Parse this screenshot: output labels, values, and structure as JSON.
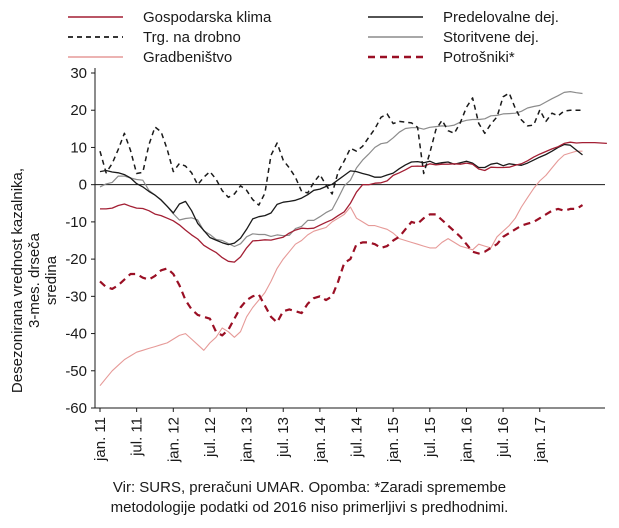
{
  "chart_data": {
    "type": "line",
    "title": "",
    "ylabel": "Desezonirana vrednost kazalnika, 3-mes. drseča sredina",
    "xlabel": "",
    "ylim": [
      -60,
      30
    ],
    "yticks": [
      -60,
      -50,
      -40,
      -30,
      -20,
      -10,
      0,
      10,
      20,
      30
    ],
    "x_tick_labels": [
      "jan. 11",
      "jul. 11",
      "jan. 12",
      "jul. 12",
      "jan. 13",
      "jul. 13",
      "jan. 14",
      "jul. 14",
      "jan. 15",
      "jul. 15",
      "jan. 16",
      "jul. 16",
      "jan. 17"
    ],
    "x_start": "2011-01",
    "x_end": "2017-12",
    "legend_position": "top",
    "grid": false,
    "series": [
      {
        "name": "Gospodarska klima",
        "color": "#a31f34",
        "dash": "solid",
        "width": 1.3,
        "values": [
          -6.5,
          -6.5,
          -6.3,
          -5.6,
          -5.2,
          -5.8,
          -6.3,
          -6.4,
          -7.0,
          -7.9,
          -8.3,
          -9.0,
          -9.7,
          -10.8,
          -12.2,
          -13.5,
          -14.6,
          -16.3,
          -17.3,
          -18.2,
          -19.6,
          -20.6,
          -20.8,
          -19.4,
          -17.0,
          -15.1,
          -15.0,
          -14.8,
          -14.9,
          -14.5,
          -14.1,
          -13.0,
          -12.2,
          -11.7,
          -11.8,
          -11.7,
          -10.9,
          -10.1,
          -9.4,
          -8.3,
          -7.3,
          -5.0,
          -2.0,
          0.0,
          0.0,
          0.4,
          0.5,
          1.0,
          2.5,
          3.2,
          4.0,
          4.9,
          5.0,
          4.9,
          5.6,
          5.3,
          5.5,
          5.5,
          5.6,
          5.5,
          5.8,
          5.5,
          4.2,
          3.8,
          4.7,
          4.6,
          4.6,
          4.7,
          5.2,
          5.6,
          6.4,
          7.4,
          8.2,
          8.9,
          9.6,
          10.2,
          11.1,
          11.4,
          11.2,
          11.3,
          11.3,
          11.3,
          11.2,
          11.1
        ]
      },
      {
        "name": "Predelovalne dej.",
        "color": "#1a1a1a",
        "dash": "solid",
        "width": 1.3,
        "values": [
          3.5,
          3.8,
          3.4,
          3.2,
          2.7,
          1.8,
          0.3,
          -0.6,
          -1.8,
          -2.8,
          -4.1,
          -5.8,
          -7.6,
          -5.2,
          -4.5,
          -7.0,
          -10.4,
          -12.3,
          -14.2,
          -14.9,
          -15.6,
          -16.1,
          -15.7,
          -14.4,
          -12.0,
          -9.2,
          -8.6,
          -8.3,
          -7.6,
          -5.3,
          -4.7,
          -4.5,
          -4.2,
          -3.6,
          -2.7,
          -1.5,
          -1.2,
          -0.5,
          0.1,
          1.3,
          2.5,
          3.7,
          3.5,
          3.0,
          2.6,
          2.0,
          2.0,
          2.6,
          3.1,
          4.3,
          5.3,
          6.1,
          6.2,
          5.9,
          6.3,
          5.6,
          5.9,
          6.1,
          5.5,
          5.9,
          6.3,
          5.8,
          4.6,
          4.6,
          5.5,
          5.8,
          5.1,
          5.6,
          5.4,
          5.2,
          5.8,
          6.6,
          7.4,
          8.1,
          9.0,
          10.0,
          10.8,
          10.6,
          9.3,
          8.0
        ]
      },
      {
        "name": "Trg. na drobno",
        "color": "#1a1a1a",
        "dash": "dashed",
        "width": 1.5,
        "values": [
          9.0,
          3.2,
          5.7,
          9.5,
          13.8,
          9.2,
          3.0,
          3.3,
          10.7,
          15.5,
          14.2,
          9.5,
          3.5,
          5.7,
          5.0,
          3.2,
          0.0,
          2.0,
          3.5,
          1.5,
          -1.6,
          -3.4,
          -2.5,
          -0.3,
          -1.5,
          -4.0,
          -5.5,
          -2.3,
          7.9,
          11.2,
          6.6,
          4.5,
          2.0,
          -1.8,
          -2.2,
          0.6,
          2.7,
          -0.1,
          -2.5,
          3.5,
          6.4,
          9.8,
          9.0,
          10.3,
          12.7,
          15.0,
          18.1,
          19.0,
          16.4,
          17.0,
          16.8,
          16.6,
          15.4,
          3.0,
          8.5,
          14.8,
          17.3,
          14.5,
          13.8,
          16.7,
          20.8,
          23.3,
          16.5,
          13.8,
          16.3,
          18.2,
          23.6,
          24.6,
          20.5,
          17.4,
          15.8,
          16.0,
          20.1,
          17.0,
          19.2,
          18.5,
          19.8,
          20.0,
          20.0,
          20.0
        ]
      },
      {
        "name": "Storitvene dej.",
        "color": "#8c8c8c",
        "dash": "solid",
        "width": 1.2,
        "values": [
          -0.6,
          0.2,
          0.6,
          2.3,
          2.3,
          1.8,
          1.4,
          1.2,
          -1.5,
          -2.8,
          -4.2,
          -5.8,
          -7.8,
          -9.5,
          -9.1,
          -8.9,
          -9.5,
          -12.4,
          -13.4,
          -14.7,
          -15.0,
          -15.8,
          -16.6,
          -15.9,
          -14.0,
          -13.2,
          -13.4,
          -13.4,
          -13.9,
          -13.5,
          -13.7,
          -13.6,
          -11.8,
          -11.2,
          -9.6,
          -9.6,
          -8.6,
          -7.5,
          -6.7,
          -3.6,
          -0.3,
          1.2,
          4.5,
          6.6,
          8.2,
          10.0,
          11.0,
          11.3,
          12.6,
          14.1,
          15.1,
          15.3,
          15.3,
          14.9,
          15.4,
          15.6,
          15.8,
          15.7,
          16.0,
          16.8,
          17.3,
          17.5,
          17.5,
          17.7,
          18.5,
          18.6,
          19.0,
          19.1,
          19.2,
          19.7,
          20.6,
          21.0,
          21.3,
          22.2,
          23.1,
          23.9,
          24.8,
          25.0,
          24.7,
          24.5
        ]
      },
      {
        "name": "Gradbeništvo",
        "color": "#e69a98",
        "dash": "solid",
        "width": 1.1,
        "values": [
          -54.0,
          -52.0,
          -50.0,
          -48.5,
          -47.0,
          -46.0,
          -45.0,
          -44.5,
          -44.0,
          -43.5,
          -43.0,
          -42.5,
          -41.5,
          -40.5,
          -40.0,
          -41.5,
          -43.0,
          -44.5,
          -42.5,
          -41.0,
          -38.5,
          -39.5,
          -41.0,
          -39.5,
          -35.5,
          -33.0,
          -31.0,
          -29.0,
          -26.0,
          -22.5,
          -20.0,
          -18.0,
          -16.0,
          -15.0,
          -13.5,
          -12.5,
          -12.0,
          -11.5,
          -10.0,
          -9.0,
          -8.0,
          -6.0,
          -9.0,
          -10.0,
          -11.0,
          -11.0,
          -11.5,
          -12.0,
          -13.0,
          -14.5,
          -15.0,
          -15.5,
          -16.0,
          -16.5,
          -17.0,
          -17.0,
          -15.5,
          -14.5,
          -15.5,
          -16.5,
          -17.0,
          -17.5,
          -16.0,
          -16.5,
          -17.0,
          -14.0,
          -12.5,
          -11.0,
          -9.0,
          -6.0,
          -3.5,
          -1.0,
          1.0,
          2.5,
          4.5,
          6.5,
          8.0,
          8.5,
          9.0,
          9.0
        ]
      },
      {
        "name": "Potrošniki*",
        "color": "#9a0f24",
        "dash": "dashed",
        "width": 2.2,
        "values": [
          -26.0,
          -27.5,
          -28.0,
          -27.0,
          -25.5,
          -24.0,
          -24.0,
          -25.0,
          -25.5,
          -24.5,
          -23.0,
          -22.5,
          -24.0,
          -27.0,
          -31.0,
          -33.5,
          -35.0,
          -35.5,
          -36.0,
          -39.5,
          -40.5,
          -39.0,
          -36.0,
          -33.0,
          -31.0,
          -30.0,
          -29.5,
          -32.5,
          -35.5,
          -37.0,
          -34.0,
          -33.5,
          -34.0,
          -34.5,
          -32.0,
          -30.5,
          -30.0,
          -31.0,
          -30.0,
          -26.0,
          -21.0,
          -20.0,
          -16.0,
          -15.5,
          -15.5,
          -16.0,
          -17.0,
          -16.5,
          -15.0,
          -14.0,
          -12.0,
          -10.0,
          -10.5,
          -9.0,
          -8.0,
          -8.0,
          -9.5,
          -11.0,
          -12.5,
          -14.0,
          -16.0,
          -18.0,
          -18.5,
          -18.0,
          -17.0,
          -16.0,
          -14.0,
          -13.0,
          -12.0,
          -11.0,
          -10.5,
          -10.0,
          -9.0,
          -8.0,
          -7.0,
          -6.5,
          -7.0,
          -6.5,
          -6.5,
          -5.5
        ]
      }
    ]
  },
  "legend": {
    "items": [
      "Gospodarska klima",
      "Predelovalne dej.",
      "Trg. na drobno",
      "Storitvene dej.",
      "Gradbeništvo",
      "Potrošniki*"
    ]
  },
  "source_note": {
    "line1": "Vir: SURS, preračuni UMAR. Opomba: *Zaradi spremembe",
    "line2": "metodologije podatki od 2016 niso primerljivi s predhodnimi."
  }
}
